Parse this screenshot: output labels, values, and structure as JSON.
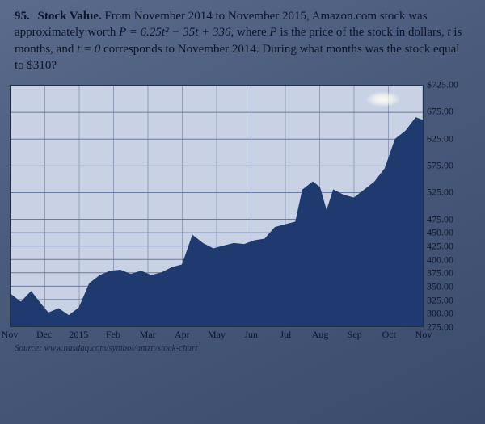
{
  "problem": {
    "number": "95.",
    "title": "Stock Value.",
    "body_1": "From November 2014 to November 2015, Amazon.com stock was approximately worth ",
    "equation": "P = 6.25t² − 35t + 336",
    "body_2": ", where ",
    "pvar": "P",
    "body_3": " is the price of the stock in dollars, ",
    "tvar": "t",
    "body_4": " is months, and ",
    "t0": "t = 0",
    "body_5": " corresponds to November 2014. During what months was the stock equal to $310?"
  },
  "chart": {
    "type": "area",
    "background_color": "#c9d2e4",
    "area_fill": "#1e3a6e",
    "grid_color": "#6a7aa0",
    "border_color": "#23304a",
    "xlim": [
      0,
      12
    ],
    "ylim": [
      275,
      725
    ],
    "xticks": [
      "Nov",
      "Dec",
      "2015",
      "Feb",
      "Mar",
      "Apr",
      "May",
      "Jun",
      "Jul",
      "Aug",
      "Sep",
      "Oct",
      "Nov"
    ],
    "yticks": [
      {
        "v": 725,
        "label": "$725.00"
      },
      {
        "v": 675,
        "label": "675.00"
      },
      {
        "v": 625,
        "label": "625.00"
      },
      {
        "v": 575,
        "label": "575.00"
      },
      {
        "v": 525,
        "label": "525.00"
      },
      {
        "v": 475,
        "label": "475.00"
      },
      {
        "v": 450,
        "label": "450.00"
      },
      {
        "v": 425,
        "label": "425.00"
      },
      {
        "v": 400,
        "label": "400.00"
      },
      {
        "v": 375,
        "label": "375.00"
      },
      {
        "v": 350,
        "label": "350.00"
      },
      {
        "v": 325,
        "label": "325.00"
      },
      {
        "v": 300,
        "label": "300.00"
      },
      {
        "v": 275,
        "label": "275.00"
      }
    ],
    "series": [
      {
        "x": 0.0,
        "y": 335
      },
      {
        "x": 0.3,
        "y": 320
      },
      {
        "x": 0.6,
        "y": 340
      },
      {
        "x": 0.9,
        "y": 315
      },
      {
        "x": 1.1,
        "y": 300
      },
      {
        "x": 1.4,
        "y": 308
      },
      {
        "x": 1.7,
        "y": 295
      },
      {
        "x": 2.0,
        "y": 310
      },
      {
        "x": 2.3,
        "y": 355
      },
      {
        "x": 2.6,
        "y": 370
      },
      {
        "x": 2.9,
        "y": 378
      },
      {
        "x": 3.2,
        "y": 380
      },
      {
        "x": 3.5,
        "y": 372
      },
      {
        "x": 3.8,
        "y": 378
      },
      {
        "x": 4.1,
        "y": 370
      },
      {
        "x": 4.4,
        "y": 375
      },
      {
        "x": 4.7,
        "y": 385
      },
      {
        "x": 5.0,
        "y": 390
      },
      {
        "x": 5.3,
        "y": 445
      },
      {
        "x": 5.6,
        "y": 430
      },
      {
        "x": 5.9,
        "y": 420
      },
      {
        "x": 6.2,
        "y": 425
      },
      {
        "x": 6.5,
        "y": 430
      },
      {
        "x": 6.8,
        "y": 428
      },
      {
        "x": 7.1,
        "y": 435
      },
      {
        "x": 7.4,
        "y": 438
      },
      {
        "x": 7.7,
        "y": 460
      },
      {
        "x": 8.0,
        "y": 465
      },
      {
        "x": 8.3,
        "y": 470
      },
      {
        "x": 8.5,
        "y": 530
      },
      {
        "x": 8.8,
        "y": 545
      },
      {
        "x": 9.0,
        "y": 535
      },
      {
        "x": 9.2,
        "y": 490
      },
      {
        "x": 9.4,
        "y": 530
      },
      {
        "x": 9.7,
        "y": 520
      },
      {
        "x": 10.0,
        "y": 515
      },
      {
        "x": 10.3,
        "y": 530
      },
      {
        "x": 10.6,
        "y": 545
      },
      {
        "x": 10.9,
        "y": 570
      },
      {
        "x": 11.2,
        "y": 625
      },
      {
        "x": 11.5,
        "y": 640
      },
      {
        "x": 11.8,
        "y": 665
      },
      {
        "x": 12.0,
        "y": 660
      }
    ],
    "label_fontsize": 12,
    "source": "Source: www.nasdaq.com/symbol/amzn/stock-chart"
  }
}
